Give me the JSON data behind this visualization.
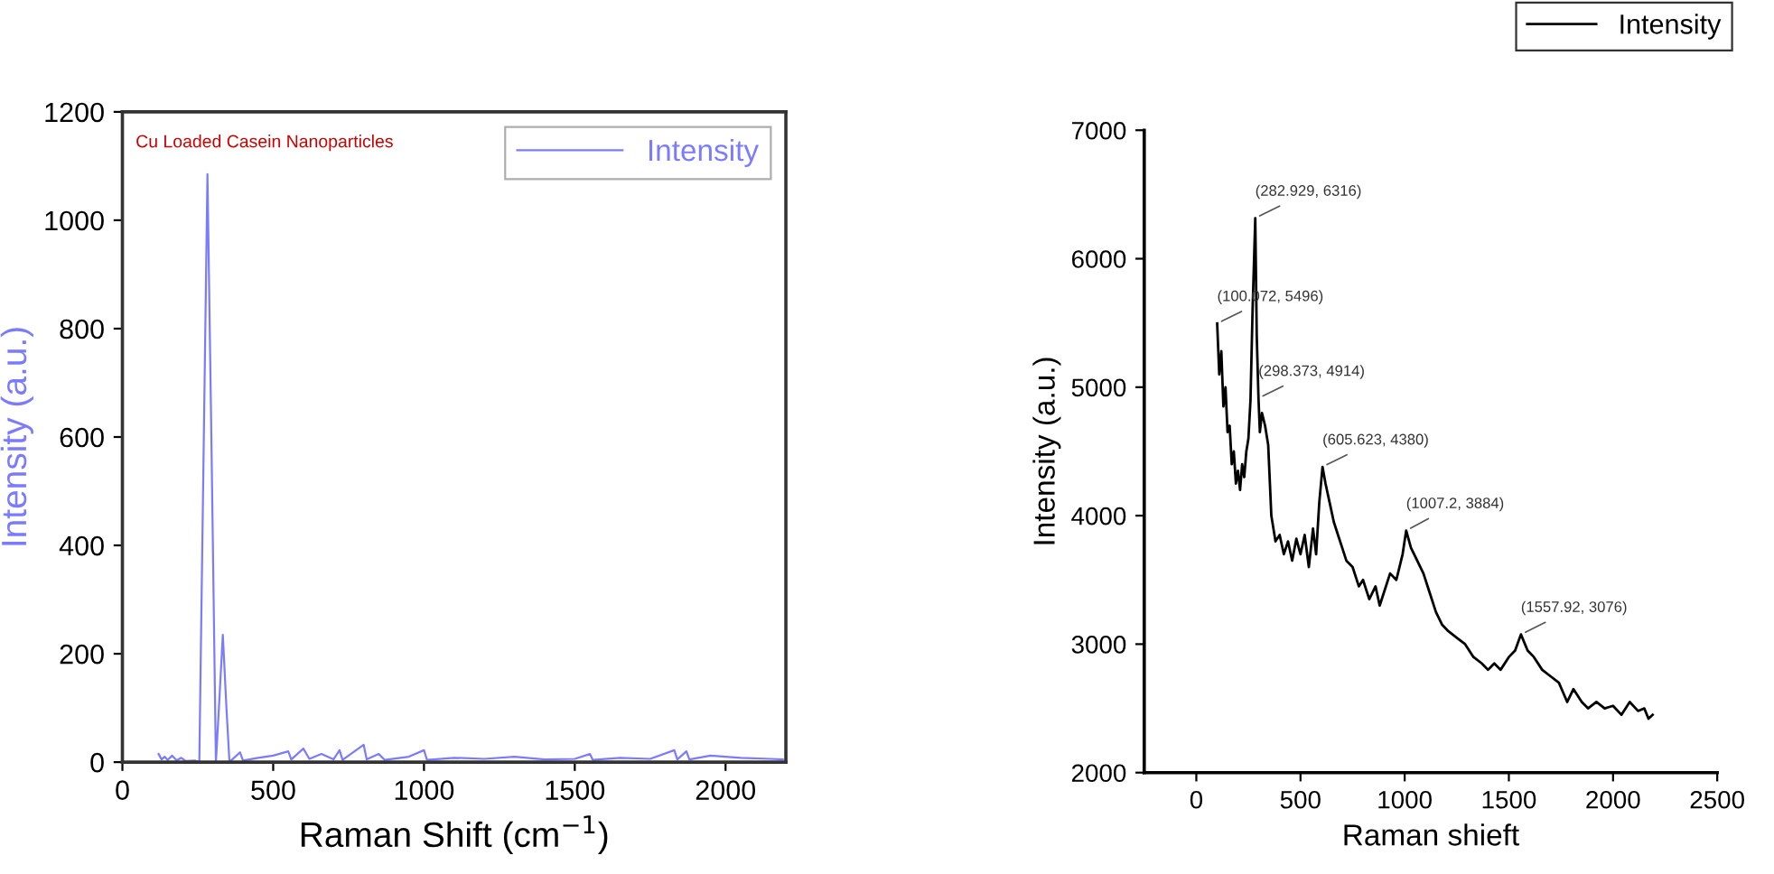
{
  "chart_data": [
    {
      "type": "line",
      "title": "Cu Loaded Casein Nanoparticles",
      "xlabel": "Raman Shift (cm$^{−1}$)",
      "ylabel": "Intensity (a.u.)",
      "xlim": [
        0,
        2200
      ],
      "xticks": [
        0,
        500,
        1000,
        1500,
        2000
      ],
      "ylim": [
        0,
        1200
      ],
      "yticks": [
        0,
        200,
        400,
        600,
        800,
        1000,
        1200
      ],
      "grid": false,
      "legend": "top right",
      "marker": "none",
      "line_style": "solid",
      "series": [
        {
          "name": "Intensity",
          "color": "#7b7bff",
          "x": [
            120,
            130,
            140,
            150,
            165,
            180,
            195,
            210,
            240,
            255,
            270,
            282,
            295,
            310,
            320,
            333,
            345,
            355,
            390,
            400,
            450,
            500,
            550,
            560,
            600,
            620,
            660,
            700,
            720,
            730,
            800,
            810,
            850,
            870,
            950,
            1000,
            1010,
            1100,
            1200,
            1300,
            1400,
            1500,
            1550,
            1560,
            1650,
            1750,
            1830,
            1840,
            1870,
            1880,
            1950,
            2050,
            2150,
            2190
          ],
          "values": [
            15,
            5,
            10,
            4,
            12,
            3,
            8,
            2,
            3,
            0,
            600,
            1085,
            600,
            0,
            100,
            235,
            100,
            0,
            18,
            3,
            8,
            12,
            20,
            5,
            25,
            6,
            15,
            5,
            22,
            4,
            32,
            5,
            15,
            4,
            10,
            22,
            4,
            8,
            6,
            10,
            5,
            6,
            15,
            4,
            8,
            6,
            22,
            5,
            20,
            5,
            12,
            8,
            6,
            5
          ]
        }
      ]
    },
    {
      "type": "line",
      "xlabel": "Raman shieft",
      "ylabel": "Intensity (a.u.)",
      "xlim": [
        -250,
        2500
      ],
      "xticks": [
        0,
        500,
        1000,
        1500,
        2000,
        2500
      ],
      "ylim": [
        2000,
        7000
      ],
      "yticks": [
        2000,
        3000,
        4000,
        5000,
        6000,
        7000
      ],
      "grid": false,
      "legend": "top right",
      "marker": "none",
      "line_style": "solid",
      "annotations": [
        {
          "text": "(100.072, 5496)",
          "x": 100.072,
          "y": 5496
        },
        {
          "text": "(282.929, 6316)",
          "x": 282.929,
          "y": 6316
        },
        {
          "text": "(298.373, 4914)",
          "x": 298.373,
          "y": 4914
        },
        {
          "text": "(605.623, 4380)",
          "x": 605.623,
          "y": 4380
        },
        {
          "text": "(1007.2, 3884)",
          "x": 1007.2,
          "y": 3884
        },
        {
          "text": "(1557.92, 3076)",
          "x": 1557.92,
          "y": 3076
        }
      ],
      "series": [
        {
          "name": "Intensity",
          "color": "#000000",
          "x": [
            100.072,
            110,
            120,
            130,
            140,
            150,
            160,
            170,
            180,
            190,
            200,
            210,
            220,
            230,
            240,
            250,
            260,
            270,
            282.929,
            290,
            298.373,
            305,
            315,
            330,
            345,
            360,
            380,
            400,
            420,
            440,
            460,
            480,
            500,
            520,
            540,
            560,
            575,
            590,
            605.623,
            620,
            640,
            660,
            680,
            700,
            720,
            750,
            780,
            800,
            830,
            860,
            880,
            900,
            930,
            960,
            990,
            1007.2,
            1030,
            1060,
            1090,
            1120,
            1150,
            1180,
            1210,
            1250,
            1290,
            1330,
            1370,
            1400,
            1430,
            1460,
            1500,
            1530,
            1557.92,
            1590,
            1620,
            1660,
            1700,
            1740,
            1780,
            1810,
            1850,
            1880,
            1920,
            1960,
            2000,
            2040,
            2080,
            2120,
            2150,
            2170,
            2190
          ],
          "values": [
            5496,
            5100,
            5280,
            4850,
            5000,
            4650,
            4700,
            4400,
            4500,
            4250,
            4350,
            4200,
            4400,
            4300,
            4500,
            4600,
            4900,
            5600,
            6316,
            5400,
            4914,
            4650,
            4800,
            4700,
            4550,
            4000,
            3800,
            3850,
            3700,
            3800,
            3650,
            3820,
            3700,
            3850,
            3600,
            3900,
            3700,
            4100,
            4380,
            4250,
            4100,
            3950,
            3850,
            3750,
            3650,
            3600,
            3450,
            3500,
            3350,
            3450,
            3300,
            3400,
            3550,
            3500,
            3700,
            3884,
            3750,
            3650,
            3550,
            3400,
            3250,
            3150,
            3100,
            3050,
            3000,
            2900,
            2850,
            2800,
            2850,
            2800,
            2900,
            2950,
            3076,
            2950,
            2900,
            2800,
            2750,
            2700,
            2550,
            2650,
            2550,
            2500,
            2550,
            2500,
            2520,
            2450,
            2550,
            2480,
            2500,
            2420,
            2450
          ]
        }
      ]
    }
  ]
}
